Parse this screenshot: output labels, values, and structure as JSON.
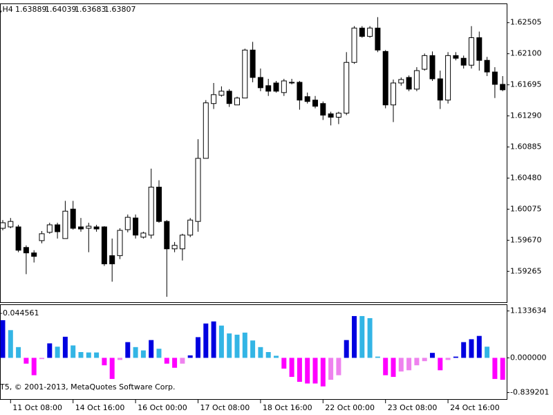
{
  "chart_data": [
    {
      "type": "candlestick",
      "title": ",H4",
      "ohlc_header": [
        1.63889,
        1.64039,
        1.63683,
        1.63807
      ],
      "up_color": "#ffffff",
      "down_color": "#000000",
      "open": [
        1.59826,
        1.59844,
        1.59844,
        1.59576,
        1.59505,
        1.59665,
        1.59773,
        1.59871,
        1.59692,
        1.60076,
        1.59844,
        1.59826,
        1.59844,
        1.59844,
        1.59469,
        1.59469,
        1.59808,
        1.5996,
        1.5971,
        1.59737,
        1.60362,
        1.59915,
        1.59558,
        1.59558,
        1.59737,
        1.59915,
        1.60737,
        1.61451,
        1.61559,
        1.61612,
        1.61433,
        1.61523,
        1.62148,
        1.61791,
        1.61684,
        1.61719,
        1.61594,
        1.61728,
        1.61728,
        1.61541,
        1.61496,
        1.61451,
        1.61317,
        1.61273,
        1.61326,
        1.61987,
        1.62434,
        1.62326,
        1.62434,
        1.6213,
        1.61433,
        1.61719,
        1.61791,
        1.61639,
        1.61898,
        1.62076,
        1.61773,
        1.61496,
        1.62076,
        1.62041,
        1.61951,
        1.62309,
        1.62014,
        1.61862,
        1.61701
      ],
      "high": [
        1.59933,
        1.5996,
        1.59871,
        1.59603,
        1.5954,
        1.5979,
        1.59898,
        1.59898,
        1.60183,
        1.60183,
        1.5996,
        1.59898,
        1.59871,
        1.59853,
        1.59692,
        1.59826,
        1.60005,
        1.60005,
        1.59781,
        1.60603,
        1.60451,
        1.59933,
        1.59647,
        1.59755,
        1.5996,
        1.60987,
        1.61496,
        1.61719,
        1.61675,
        1.61639,
        1.61541,
        1.62166,
        1.62255,
        1.61907,
        1.61773,
        1.61746,
        1.61773,
        1.61773,
        1.61746,
        1.61594,
        1.6155,
        1.61478,
        1.61344,
        1.61344,
        1.62121,
        1.6246,
        1.6246,
        1.6246,
        1.62577,
        1.62148,
        1.61764,
        1.61791,
        1.61817,
        1.61925,
        1.62103,
        1.6213,
        1.6188,
        1.62121,
        1.62121,
        1.62076,
        1.6246,
        1.62389,
        1.62059,
        1.61925,
        1.61809
      ],
      "low": [
        1.59799,
        1.59826,
        1.59514,
        1.59228,
        1.5938,
        1.5963,
        1.59755,
        1.59692,
        1.59692,
        1.59808,
        1.59781,
        1.59514,
        1.59781,
        1.59335,
        1.5913,
        1.59424,
        1.59773,
        1.59692,
        1.59692,
        1.59692,
        1.59898,
        1.58933,
        1.59514,
        1.59406,
        1.5971,
        1.59781,
        1.60737,
        1.6138,
        1.61541,
        1.61407,
        1.61433,
        1.61523,
        1.61728,
        1.61612,
        1.6155,
        1.61594,
        1.6155,
        1.61701,
        1.61371,
        1.61451,
        1.61389,
        1.61237,
        1.61166,
        1.61183,
        1.613,
        1.61969,
        1.62309,
        1.62309,
        1.62121,
        1.61389,
        1.6121,
        1.61684,
        1.61612,
        1.61612,
        1.6188,
        1.61746,
        1.6138,
        1.61451,
        1.62014,
        1.61907,
        1.61907,
        1.6188,
        1.61809,
        1.61523,
        1.61612
      ],
      "close": [
        1.59898,
        1.59915,
        1.5954,
        1.59505,
        1.5946,
        1.59755,
        1.59871,
        1.59781,
        1.60049,
        1.59826,
        1.59817,
        1.59853,
        1.59817,
        1.59362,
        1.59362,
        1.59799,
        1.59969,
        1.59737,
        1.59764,
        1.60362,
        1.59915,
        1.59558,
        1.59603,
        1.59737,
        1.59933,
        1.60737,
        1.6146,
        1.61567,
        1.61612,
        1.61451,
        1.61523,
        1.62148,
        1.61791,
        1.61657,
        1.61612,
        1.61612,
        1.61746,
        1.61719,
        1.61496,
        1.61478,
        1.61416,
        1.613,
        1.61273,
        1.61326,
        1.61987,
        1.62434,
        1.62326,
        1.62434,
        1.62148,
        1.61433,
        1.61719,
        1.61764,
        1.61639,
        1.6188,
        1.62076,
        1.61773,
        1.61496,
        1.62076,
        1.62041,
        1.61951,
        1.62309,
        1.62014,
        1.61862,
        1.61701,
        1.6163
      ],
      "ylim": [
        1.58871,
        1.62728
      ],
      "yticks": [
        1.62505,
        {
          "value": 1.621,
          "label": "1.62100"
        },
        1.61695,
        {
          "value": 1.6129,
          "label": "1.61290"
        },
        1.60885,
        {
          "value": 1.6048,
          "label": "1.60480"
        },
        1.60075,
        {
          "value": 1.5967,
          "label": "1.59670"
        },
        1.59265
      ]
    },
    {
      "type": "bar",
      "current_value": -0.044561,
      "copyright": "T5, © 2001-2013, MetaQuotes Software Corp.",
      "categories": [
        null,
        "11 Oct 08:00",
        null,
        null,
        null,
        null,
        null,
        null,
        null,
        "14 Oct 16:00",
        null,
        null,
        null,
        null,
        null,
        null,
        null,
        "16 Oct 00:00",
        null,
        null,
        null,
        null,
        null,
        null,
        null,
        "17 Oct 08:00",
        null,
        null,
        null,
        null,
        null,
        null,
        null,
        "18 Oct 16:00",
        null,
        null,
        null,
        null,
        null,
        null,
        null,
        "22 Oct 00:00",
        null,
        null,
        null,
        null,
        null,
        null,
        null,
        "23 Oct 08:00",
        null,
        null,
        null,
        null,
        null,
        null,
        null,
        "24 Oct 16:00",
        null,
        null,
        null,
        null,
        null,
        null,
        null
      ],
      "values": [
        0.91,
        0.67,
        0.26,
        -0.14,
        -0.42,
        -0.03,
        0.35,
        0.27,
        0.51,
        0.3,
        0.14,
        0.13,
        0.13,
        -0.18,
        -0.51,
        -0.05,
        0.38,
        0.26,
        0.18,
        0.43,
        0.22,
        -0.14,
        -0.24,
        -0.14,
        0.06,
        0.5,
        0.83,
        0.88,
        0.78,
        0.59,
        0.56,
        0.61,
        0.42,
        0.26,
        0.14,
        0.05,
        -0.26,
        -0.46,
        -0.58,
        -0.62,
        -0.62,
        -0.69,
        -0.53,
        -0.42,
        0.43,
        1.01,
        1.01,
        0.96,
        0.03,
        -0.42,
        -0.46,
        -0.33,
        -0.3,
        -0.18,
        -0.08,
        0.12,
        -0.3,
        -0.05,
        0.03,
        0.38,
        0.45,
        0.53,
        0.27,
        -0.51,
        -0.53
      ],
      "colors": [
        "#0000e0",
        "#33b5e5",
        "#33b5e5",
        "#ff00ff",
        "#ff00ff",
        "#ee82ee",
        "#0000e0",
        "#33b5e5",
        "#0000e0",
        "#33b5e5",
        "#33b5e5",
        "#33b5e5",
        "#33b5e5",
        "#ff00ff",
        "#ff00ff",
        "#ee82ee",
        "#0000e0",
        "#33b5e5",
        "#33b5e5",
        "#0000e0",
        "#33b5e5",
        "#ff00ff",
        "#ff00ff",
        "#ee82ee",
        "#0000e0",
        "#0000e0",
        "#0000e0",
        "#0000e0",
        "#33b5e5",
        "#33b5e5",
        "#33b5e5",
        "#33b5e5",
        "#33b5e5",
        "#33b5e5",
        "#33b5e5",
        "#33b5e5",
        "#ff00ff",
        "#ff00ff",
        "#ff00ff",
        "#ff00ff",
        "#ff00ff",
        "#ff00ff",
        "#ee82ee",
        "#ee82ee",
        "#0000e0",
        "#0000e0",
        "#33b5e5",
        "#33b5e5",
        "#33b5e5",
        "#ff00ff",
        "#ff00ff",
        "#ee82ee",
        "#ee82ee",
        "#ee82ee",
        "#ee82ee",
        "#0000e0",
        "#ff00ff",
        "#ee82ee",
        "#0000e0",
        "#0000e0",
        "#0000e0",
        "#0000e0",
        "#33b5e5",
        "#ff00ff",
        "#ff00ff"
      ],
      "ylim": [
        -0.98,
        1.26
      ],
      "yticks": [
        1.133634,
        {
          "value": 0,
          "label": "0.000000"
        },
        -0.839201
      ]
    }
  ]
}
